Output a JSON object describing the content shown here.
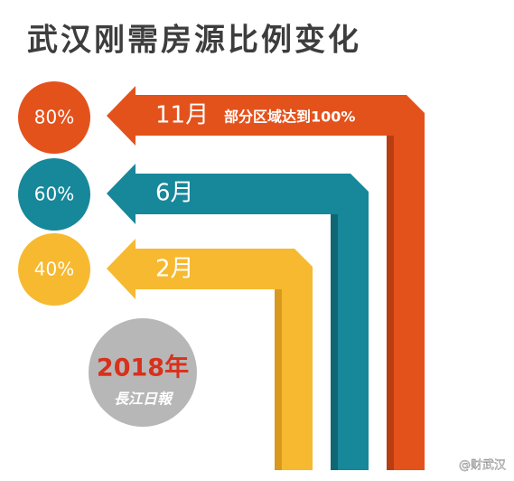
{
  "title": "武汉刚需房源比例变化",
  "items": [
    {
      "percent": "80%",
      "month": "11月",
      "note": "部分区域达到100%"
    },
    {
      "percent": "60%",
      "month": "6月"
    },
    {
      "percent": "40%",
      "month": "2月"
    }
  ],
  "badge": {
    "year": "2018年",
    "source": "長江日報"
  },
  "watermark": "@财武汉"
}
